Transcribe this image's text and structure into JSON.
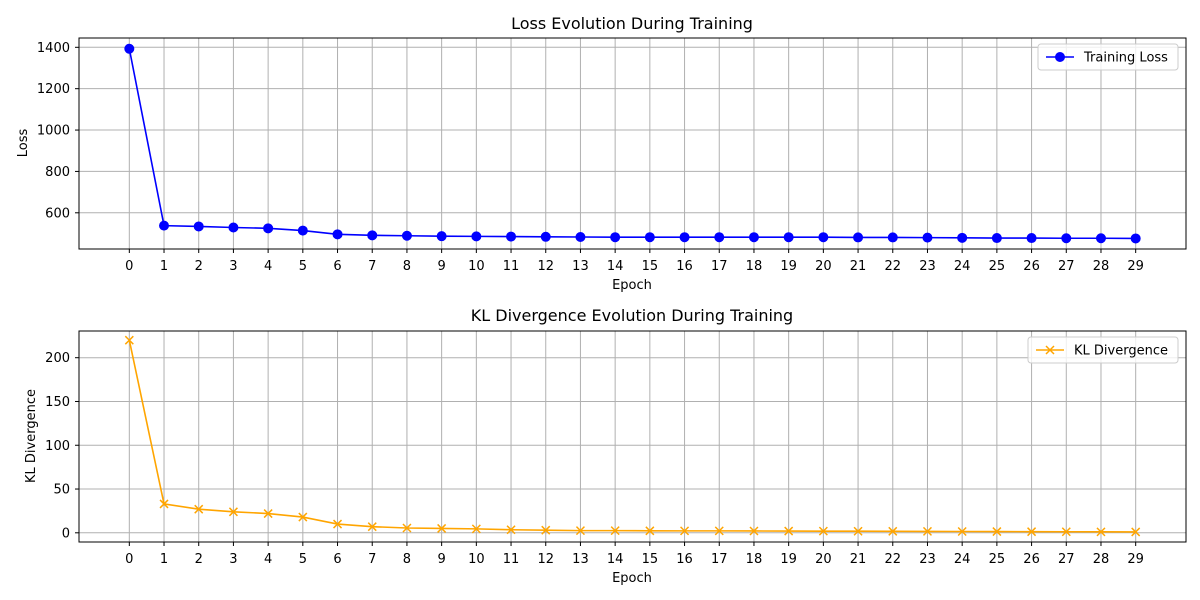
{
  "chart_data": [
    {
      "type": "line",
      "title": "Loss Evolution During Training",
      "xlabel": "Epoch",
      "ylabel": "Loss",
      "x": [
        0,
        1,
        2,
        3,
        4,
        5,
        6,
        7,
        8,
        9,
        10,
        11,
        12,
        13,
        14,
        15,
        16,
        17,
        18,
        19,
        20,
        21,
        22,
        23,
        24,
        25,
        26,
        27,
        28,
        29
      ],
      "xlim": [
        -1.45,
        30.45
      ],
      "ylim": [
        425,
        1445
      ],
      "yticks": [
        600,
        800,
        1000,
        1200,
        1400
      ],
      "grid": true,
      "legend_position": "top-right",
      "series": [
        {
          "name": "Training Loss",
          "color": "#0000ff",
          "marker": "circle",
          "values": [
            1393,
            538,
            534,
            529,
            525,
            514,
            496,
            491,
            489,
            487,
            486,
            485,
            484,
            483,
            482,
            482,
            482,
            482,
            482,
            482,
            482,
            481,
            481,
            480,
            479,
            478,
            478,
            477,
            477,
            476
          ]
        }
      ]
    },
    {
      "type": "line",
      "title": "KL Divergence Evolution During Training",
      "xlabel": "Epoch",
      "ylabel": "KL Divergence",
      "x": [
        0,
        1,
        2,
        3,
        4,
        5,
        6,
        7,
        8,
        9,
        10,
        11,
        12,
        13,
        14,
        15,
        16,
        17,
        18,
        19,
        20,
        21,
        22,
        23,
        24,
        25,
        26,
        27,
        28,
        29
      ],
      "xlim": [
        -1.45,
        30.45
      ],
      "ylim": [
        -10.5,
        230.5
      ],
      "yticks": [
        0,
        50,
        100,
        150,
        200
      ],
      "grid": true,
      "legend_position": "top-right",
      "series": [
        {
          "name": "KL Divergence",
          "color": "#ffa500",
          "marker": "x",
          "values": [
            220,
            33,
            27,
            24,
            22,
            18,
            10,
            7,
            5.5,
            5,
            4.5,
            3.5,
            3,
            2.5,
            2.5,
            2.3,
            2.2,
            2.2,
            2.1,
            2,
            1.9,
            1.8,
            1.7,
            1.6,
            1.5,
            1.4,
            1.3,
            1.2,
            1.1,
            1.0
          ]
        }
      ]
    }
  ]
}
